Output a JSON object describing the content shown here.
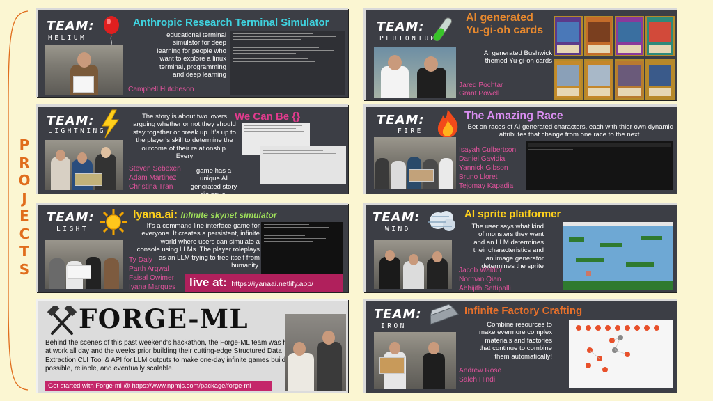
{
  "sidebar": {
    "letters": [
      "P",
      "R",
      "O",
      "J",
      "E",
      "C",
      "T",
      "S"
    ]
  },
  "team_word": "TEAM:",
  "panels": {
    "helium": {
      "team_name": "HELIUM",
      "title": "Anthropic Research Terminal Simulator",
      "title_color": "#3fd3e0",
      "description": "educational terminal simulator for deep learning for people who want to explore a linux terminal, programming and deep learning",
      "members": [
        "Campbell Hutcheson"
      ],
      "icon": "balloon-icon"
    },
    "lightning": {
      "team_name": "LIGHTNING",
      "title": "We Can Be {}",
      "title_color": "#e33b8e",
      "description_1": "The story is about two lovers arguing whether or not they should stay together or break up. It's up to the player's skill to determine the outcome of their relationship. Every",
      "description_2": "game has a unique AI generated story dialogue.",
      "members": [
        "Steven Sebexen",
        "Adam Martinez",
        "Christina Tran"
      ],
      "icon": "lightning-icon"
    },
    "light": {
      "team_name": "LIGHT",
      "title": "Iyana.ai:",
      "subtitle": "Infinite skynet simulator",
      "title_color": "#ffd11c",
      "subtitle_color": "#9fe05a",
      "description": "It's a command line interface game for everyone. It creates a persistent, infinite world where users can simulate a console using LLMs. The player roleplays as an LLM trying to free itself from humanity.",
      "members": [
        "Ty Daly",
        "Parth Argwal",
        "Faisal Owimer",
        "Iyana Marques"
      ],
      "live_label": "live at:",
      "live_url": "https://iyanaai.netlify.app/",
      "icon": "sun-icon"
    },
    "forge": {
      "title": "FORGE-ML",
      "description": "Behind the scenes of this past weekend's hackathon, the Forge-ML team was hard at work all day and the weeks prior building their cutting-edge Structured Data Extraction CLI Tool & API  for LLM outputs to make one-day infinite games builds possible, reliable, and eventually scalable.",
      "cta": "Get started with Forge-ml @ https://www.npmjs.com/package/forge-ml",
      "icon": "crossed-hammers-icon"
    },
    "plutonium": {
      "team_name": "PLUTONIUM",
      "title_line1": "AI generated",
      "title_line2": "Yu-gi-oh cards",
      "title_color": "#e8892e",
      "description": "AI generated Bushwick themed Yu-gi-oh cards",
      "members": [
        "Jared Pochtar",
        "Grant Powell"
      ],
      "icon": "test-tube-icon"
    },
    "fire": {
      "team_name": "FIRE",
      "title": "The Amazing Race",
      "title_color": "#d98ef0",
      "description": "Bet on races of AI generated characters, each with thier own dynamic attributes that change from one race to the next.",
      "members": [
        "Isayah Culbertson",
        "Daniel Gavidia",
        "Yannick Gibson",
        "Bruno Lloret",
        "Tejomay Kapadia"
      ],
      "icon": "fire-icon"
    },
    "wind": {
      "team_name": "WIND",
      "title": "AI sprite platformer",
      "title_color": "#ffd11c",
      "description": "The user says what kind of monsters they want and an LLM determines their characteristics and an image generator determines the sprite",
      "members": [
        "Jacob Waldor",
        "Norman Qian",
        "Abhijith Settipalli"
      ],
      "icon": "wind-icon"
    },
    "iron": {
      "team_name": "IRON",
      "title": "Infinite Factory Crafting",
      "title_color": "#e8702a",
      "description": "Combine resources to make evermore complex materials and factories that continue to combine them automatically!",
      "members": [
        "Andrew Rose",
        "Saleh Hindi"
      ],
      "icon": "iron-ingot-icon"
    }
  },
  "colors": {
    "panel_bg": "#3c3e45",
    "page_bg": "#fbf6d2",
    "member": "#e0539c",
    "accent": "#e06d1c",
    "live_bg": "#b0205c"
  }
}
